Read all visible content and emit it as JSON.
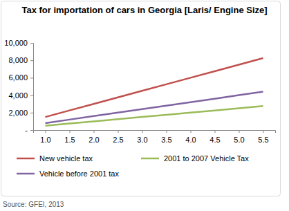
{
  "chart_data": {
    "type": "line",
    "title": "Tax for importation of cars in Georgia [Laris/ Engine Size]",
    "annotations": [
      "Source: GFEI, 2013"
    ],
    "categories": [
      "1.0",
      "1.5",
      "2.0",
      "2.5",
      "3.0",
      "3.5",
      "4.0",
      "4.5",
      "5.0",
      "5.5"
    ],
    "series": [
      {
        "name": "New vehicle tax",
        "color": "#c0504d",
        "values": [
          1500,
          2250,
          3000,
          3750,
          4500,
          5250,
          6000,
          6750,
          7500,
          8250
        ]
      },
      {
        "name": "2001 to 2007 Vehicle Tax",
        "color": "#9bbb59",
        "values": [
          500,
          750,
          1000,
          1250,
          1500,
          1750,
          2000,
          2250,
          2500,
          2750
        ]
      },
      {
        "name": "Vehicle before 2001 tax",
        "color": "#8064a2",
        "values": [
          800,
          1200,
          1600,
          2000,
          2400,
          2800,
          3200,
          3600,
          4000,
          4400
        ]
      }
    ],
    "ylim": [
      0,
      10000
    ],
    "yticks": [
      {
        "value": 0,
        "label": "-"
      },
      {
        "value": 2000,
        "label": "2,000"
      },
      {
        "value": 4000,
        "label": "4,000"
      },
      {
        "value": 6000,
        "label": "6,000"
      },
      {
        "value": 8000,
        "label": "8,000"
      },
      {
        "value": 10000,
        "label": "10,000"
      }
    ],
    "grid": false,
    "legend": "bottom"
  }
}
